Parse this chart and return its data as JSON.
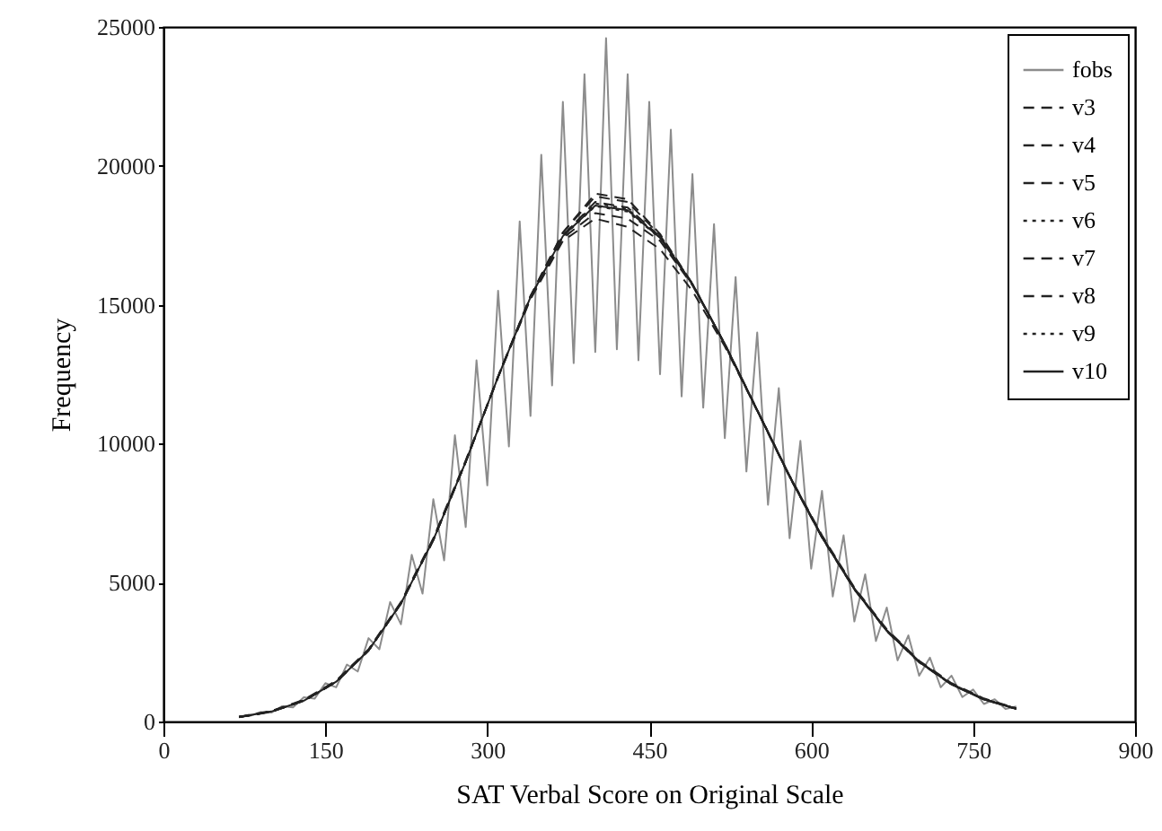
{
  "chart_data": {
    "type": "line",
    "xlabel": "SAT Verbal Score on Original Scale",
    "ylabel": "Frequency",
    "xlim": [
      0,
      900
    ],
    "xticks": [
      0,
      150,
      300,
      450,
      600,
      750,
      900
    ],
    "ylim": [
      0,
      25000
    ],
    "yticks": [
      0,
      5000,
      10000,
      15000,
      20000,
      25000
    ],
    "grid": false,
    "legend": "top right",
    "x": [
      70,
      100,
      130,
      160,
      190,
      220,
      250,
      280,
      310,
      340,
      370,
      400,
      430,
      460,
      490,
      520,
      550,
      580,
      610,
      640,
      670,
      700,
      730,
      760,
      790
    ],
    "series": [
      {
        "name": "fobs",
        "color": "#8c8c8c",
        "line_style": "solid",
        "x": [
          70,
          80,
          90,
          100,
          110,
          120,
          130,
          140,
          150,
          160,
          170,
          180,
          190,
          200,
          210,
          220,
          230,
          240,
          250,
          260,
          270,
          280,
          290,
          300,
          310,
          320,
          330,
          340,
          350,
          360,
          370,
          380,
          390,
          400,
          410,
          420,
          430,
          440,
          450,
          460,
          470,
          480,
          490,
          500,
          510,
          520,
          530,
          540,
          550,
          560,
          570,
          580,
          590,
          600,
          610,
          620,
          630,
          640,
          650,
          660,
          670,
          680,
          690,
          700,
          710,
          720,
          730,
          740,
          750,
          760,
          770,
          780,
          790
        ],
        "values": [
          190,
          200,
          340,
          320,
          550,
          510,
          870,
          820,
          1380,
          1230,
          2050,
          1800,
          3000,
          2600,
          4300,
          3500,
          6000,
          4600,
          8000,
          5800,
          10300,
          7000,
          13000,
          8500,
          15500,
          9900,
          18000,
          11000,
          20400,
          12100,
          22300,
          12900,
          23300,
          13300,
          24600,
          13400,
          23300,
          13000,
          22300,
          12500,
          21300,
          11700,
          19700,
          11300,
          17900,
          10200,
          16000,
          9000,
          14000,
          7800,
          12000,
          6600,
          10100,
          5500,
          8300,
          4500,
          6700,
          3600,
          5300,
          2900,
          4100,
          2200,
          3100,
          1650,
          2300,
          1230,
          1650,
          880,
          1150,
          630,
          800,
          450,
          540
        ]
      },
      {
        "name": "v3",
        "color": "#222222",
        "line_style": "dashed",
        "values": [
          160,
          360,
          750,
          1430,
          2560,
          4250,
          6540,
          9350,
          12410,
          15300,
          17600,
          18900,
          18700,
          17500,
          15750,
          13580,
          11200,
          8820,
          6640,
          4770,
          3270,
          2150,
          1340,
          800,
          460
        ]
      },
      {
        "name": "v4",
        "color": "#222222",
        "line_style": "dashed",
        "values": [
          170,
          380,
          780,
          1470,
          2600,
          4300,
          6600,
          9400,
          12400,
          15200,
          17300,
          18100,
          17800,
          17000,
          15500,
          13500,
          11200,
          8850,
          6700,
          4820,
          3320,
          2190,
          1380,
          830,
          480
        ]
      },
      {
        "name": "v5",
        "color": "#222222",
        "line_style": "dashed",
        "values": [
          160,
          360,
          750,
          1430,
          2560,
          4250,
          6540,
          9350,
          12410,
          15280,
          17500,
          18700,
          18500,
          17450,
          15740,
          13580,
          11200,
          8820,
          6640,
          4770,
          3270,
          2150,
          1340,
          800,
          460
        ]
      },
      {
        "name": "v6",
        "color": "#222222",
        "line_style": "dotted",
        "values": [
          160,
          360,
          750,
          1430,
          2560,
          4250,
          6540,
          9350,
          12410,
          15270,
          17450,
          18550,
          18350,
          17400,
          15730,
          13580,
          11200,
          8820,
          6640,
          4770,
          3270,
          2150,
          1340,
          800,
          460
        ]
      },
      {
        "name": "v7",
        "color": "#222222",
        "line_style": "dashed",
        "values": [
          150,
          350,
          740,
          1420,
          2550,
          4240,
          6530,
          9340,
          12420,
          15320,
          17600,
          19000,
          18800,
          17550,
          15760,
          13560,
          11180,
          8800,
          6620,
          4750,
          3250,
          2130,
          1330,
          790,
          450
        ]
      },
      {
        "name": "v8",
        "color": "#222222",
        "line_style": "dashed",
        "values": [
          160,
          370,
          760,
          1450,
          2580,
          4270,
          6560,
          9360,
          12400,
          15250,
          17400,
          18300,
          18100,
          17300,
          15700,
          13590,
          11220,
          8840,
          6660,
          4790,
          3290,
          2160,
          1350,
          810,
          460
        ]
      },
      {
        "name": "v9",
        "color": "#222222",
        "line_style": "dotted",
        "values": [
          160,
          360,
          750,
          1430,
          2560,
          4250,
          6540,
          9350,
          12410,
          15280,
          17500,
          18650,
          18450,
          17420,
          15740,
          13580,
          11200,
          8820,
          6640,
          4770,
          3270,
          2150,
          1340,
          800,
          460
        ]
      },
      {
        "name": "v10",
        "color": "#222222",
        "line_style": "solid",
        "values": [
          160,
          360,
          750,
          1430,
          2560,
          4250,
          6540,
          9350,
          12410,
          15270,
          17470,
          18570,
          18400,
          17410,
          15740,
          13580,
          11200,
          8820,
          6640,
          4770,
          3270,
          2150,
          1340,
          800,
          460
        ]
      }
    ]
  }
}
